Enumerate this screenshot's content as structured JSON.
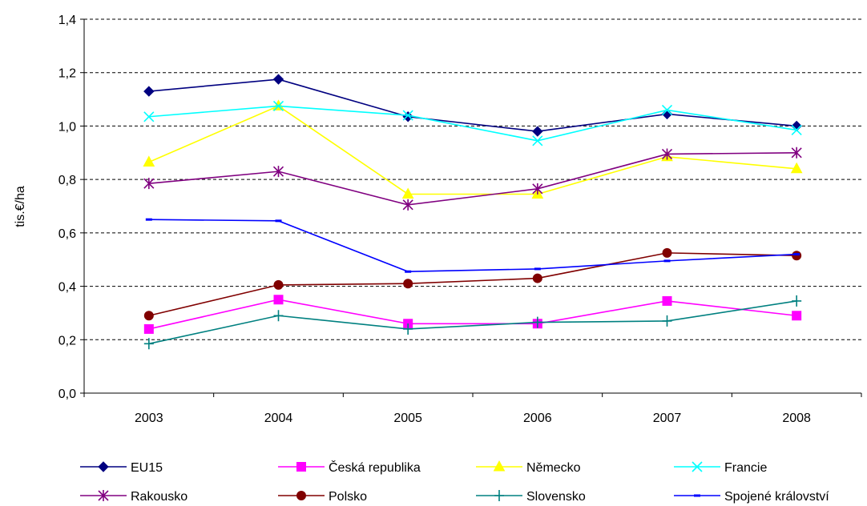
{
  "chart_data": {
    "type": "line",
    "title": "",
    "xlabel": "",
    "ylabel": "tis.€/ha",
    "categories": [
      "2003",
      "2004",
      "2005",
      "2006",
      "2007",
      "2008"
    ],
    "ylim": [
      0,
      1.4
    ],
    "yticks": [
      "0,0",
      "0,2",
      "0,4",
      "0,6",
      "0,8",
      "1,0",
      "1,2",
      "1,4"
    ],
    "grid": "horizontal dashed",
    "legend_position": "bottom",
    "series": [
      {
        "name": "EU15",
        "color": "#000080",
        "marker": "diamond",
        "values": [
          1.13,
          1.175,
          1.035,
          0.98,
          1.045,
          1.0
        ]
      },
      {
        "name": "Česká republika",
        "color": "#ff00ff",
        "marker": "square",
        "values": [
          0.24,
          0.35,
          0.26,
          0.26,
          0.345,
          0.29
        ]
      },
      {
        "name": "Německo",
        "color": "#ffff00",
        "marker": "triangle",
        "values": [
          0.865,
          1.075,
          0.745,
          0.745,
          0.885,
          0.84
        ]
      },
      {
        "name": "Francie",
        "color": "#00ffff",
        "marker": "x",
        "values": [
          1.035,
          1.075,
          1.04,
          0.945,
          1.06,
          0.985
        ]
      },
      {
        "name": "Rakousko",
        "color": "#800080",
        "marker": "star",
        "values": [
          0.785,
          0.83,
          0.705,
          0.765,
          0.895,
          0.9
        ]
      },
      {
        "name": "Polsko",
        "color": "#800000",
        "marker": "circle",
        "values": [
          0.29,
          0.405,
          0.41,
          0.43,
          0.525,
          0.515
        ]
      },
      {
        "name": "Slovensko",
        "color": "#008080",
        "marker": "plus",
        "values": [
          0.185,
          0.29,
          0.24,
          0.265,
          0.27,
          0.345
        ]
      },
      {
        "name": "Spojené království",
        "color": "#0000ff",
        "marker": "dash",
        "values": [
          0.65,
          0.645,
          0.455,
          0.465,
          0.495,
          0.52
        ]
      }
    ]
  }
}
